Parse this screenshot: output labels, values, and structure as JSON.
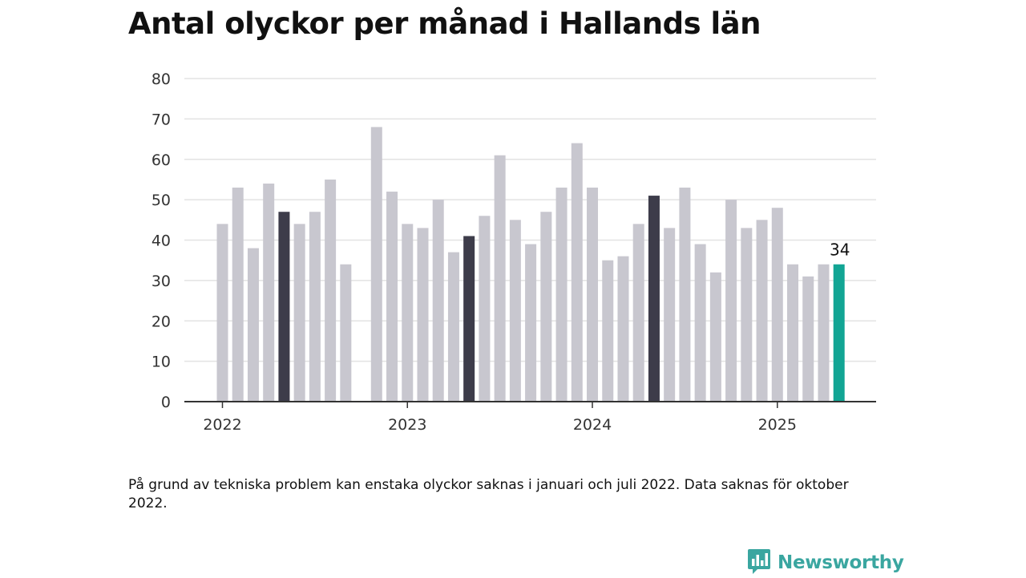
{
  "title": "Antal olyckor per månad i Hallands län",
  "note": "På grund av tekniska problem kan enstaka olyckor saknas i januari och juli 2022. Data saknas för oktober 2022.",
  "brand": {
    "name": "Newsworthy",
    "icon": "newsworthy-logo-icon",
    "color": "#3aa6a0"
  },
  "colors": {
    "default": "#c8c7cf",
    "may": "#3d3c4a",
    "latest": "#12a594",
    "axis": "#333333",
    "grid": "#e3e3e3"
  },
  "chart_data": {
    "type": "bar",
    "ylim": [
      0,
      80
    ],
    "yticks": [
      0,
      10,
      20,
      30,
      40,
      50,
      60,
      70,
      80
    ],
    "xtick_labels": [
      "2022",
      "2023",
      "2024",
      "2025"
    ],
    "xtick_months": [
      "2022-01",
      "2023-01",
      "2024-01",
      "2025-01"
    ],
    "grid": true,
    "highlight_label": "34",
    "months": [
      "2022-01",
      "2022-02",
      "2022-03",
      "2022-04",
      "2022-05",
      "2022-06",
      "2022-07",
      "2022-08",
      "2022-09",
      "2022-10",
      "2022-11",
      "2022-12",
      "2023-01",
      "2023-02",
      "2023-03",
      "2023-04",
      "2023-05",
      "2023-06",
      "2023-07",
      "2023-08",
      "2023-09",
      "2023-10",
      "2023-11",
      "2023-12",
      "2024-01",
      "2024-02",
      "2024-03",
      "2024-04",
      "2024-05",
      "2024-06",
      "2024-07",
      "2024-08",
      "2024-09",
      "2024-10",
      "2024-11",
      "2024-12",
      "2025-01",
      "2025-02",
      "2025-03",
      "2025-04",
      "2025-05"
    ],
    "values": [
      44,
      53,
      38,
      54,
      47,
      44,
      47,
      55,
      34,
      null,
      68,
      52,
      44,
      43,
      50,
      37,
      41,
      46,
      61,
      45,
      39,
      47,
      53,
      64,
      53,
      35,
      36,
      44,
      51,
      43,
      53,
      39,
      32,
      50,
      43,
      45,
      48,
      34,
      31,
      34,
      34
    ],
    "highlight_months": [
      "2022-05",
      "2023-05",
      "2024-05"
    ],
    "latest_month": "2025-05"
  }
}
